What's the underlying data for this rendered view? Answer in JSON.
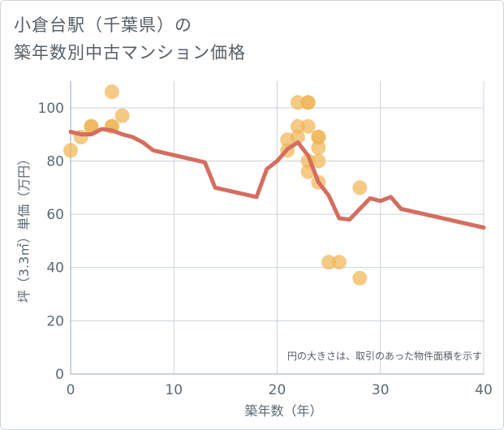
{
  "title_line1": "小倉台駅（千葉県）の",
  "title_line2": "築年数別中古マンション価格",
  "chart_data": {
    "type": "scatter",
    "title": "小倉台駅（千葉県）の築年数別中古マンション価格",
    "xlabel": "築年数（年）",
    "ylabel": "坪（3.3㎡）単価（万円）",
    "xlim": [
      0,
      40
    ],
    "ylim": [
      0,
      110
    ],
    "xticks": [
      0,
      10,
      20,
      30,
      40
    ],
    "yticks": [
      0,
      20,
      40,
      60,
      80,
      100
    ],
    "grid": true,
    "note": "円の大きさは、取引のあった物件面積を示す",
    "points": [
      {
        "x": 0,
        "y": 84
      },
      {
        "x": 1,
        "y": 89
      },
      {
        "x": 2,
        "y": 93
      },
      {
        "x": 2,
        "y": 93
      },
      {
        "x": 4,
        "y": 106
      },
      {
        "x": 4,
        "y": 93
      },
      {
        "x": 4,
        "y": 93
      },
      {
        "x": 5,
        "y": 97
      },
      {
        "x": 21,
        "y": 84
      },
      {
        "x": 21,
        "y": 88
      },
      {
        "x": 22,
        "y": 102
      },
      {
        "x": 22,
        "y": 93
      },
      {
        "x": 22,
        "y": 89
      },
      {
        "x": 23,
        "y": 102
      },
      {
        "x": 23,
        "y": 102
      },
      {
        "x": 23,
        "y": 93
      },
      {
        "x": 23,
        "y": 80
      },
      {
        "x": 23,
        "y": 76
      },
      {
        "x": 24,
        "y": 89
      },
      {
        "x": 24,
        "y": 89
      },
      {
        "x": 24,
        "y": 85
      },
      {
        "x": 24,
        "y": 80
      },
      {
        "x": 24,
        "y": 72
      },
      {
        "x": 25,
        "y": 42
      },
      {
        "x": 26,
        "y": 42
      },
      {
        "x": 28,
        "y": 70
      },
      {
        "x": 28,
        "y": 36
      }
    ],
    "trend_line": [
      [
        0,
        91
      ],
      [
        1,
        90
      ],
      [
        2,
        90
      ],
      [
        3,
        92
      ],
      [
        4,
        91.5
      ],
      [
        5,
        90
      ],
      [
        6,
        89
      ],
      [
        7,
        87
      ],
      [
        8,
        84
      ],
      [
        13,
        79.5
      ],
      [
        14,
        70
      ],
      [
        18,
        66.5
      ],
      [
        19,
        77
      ],
      [
        20,
        80
      ],
      [
        21,
        84.5
      ],
      [
        22,
        87
      ],
      [
        23,
        82
      ],
      [
        24,
        72
      ],
      [
        25,
        67
      ],
      [
        26,
        58.5
      ],
      [
        27,
        58
      ],
      [
        29,
        66
      ],
      [
        30,
        65
      ],
      [
        31,
        66.5
      ],
      [
        32,
        62
      ],
      [
        40,
        55
      ]
    ],
    "colors": {
      "points": "#f0b656",
      "line": "#d46e60",
      "grid": "#c9d3da",
      "axis_text": "#5a6a74"
    }
  }
}
